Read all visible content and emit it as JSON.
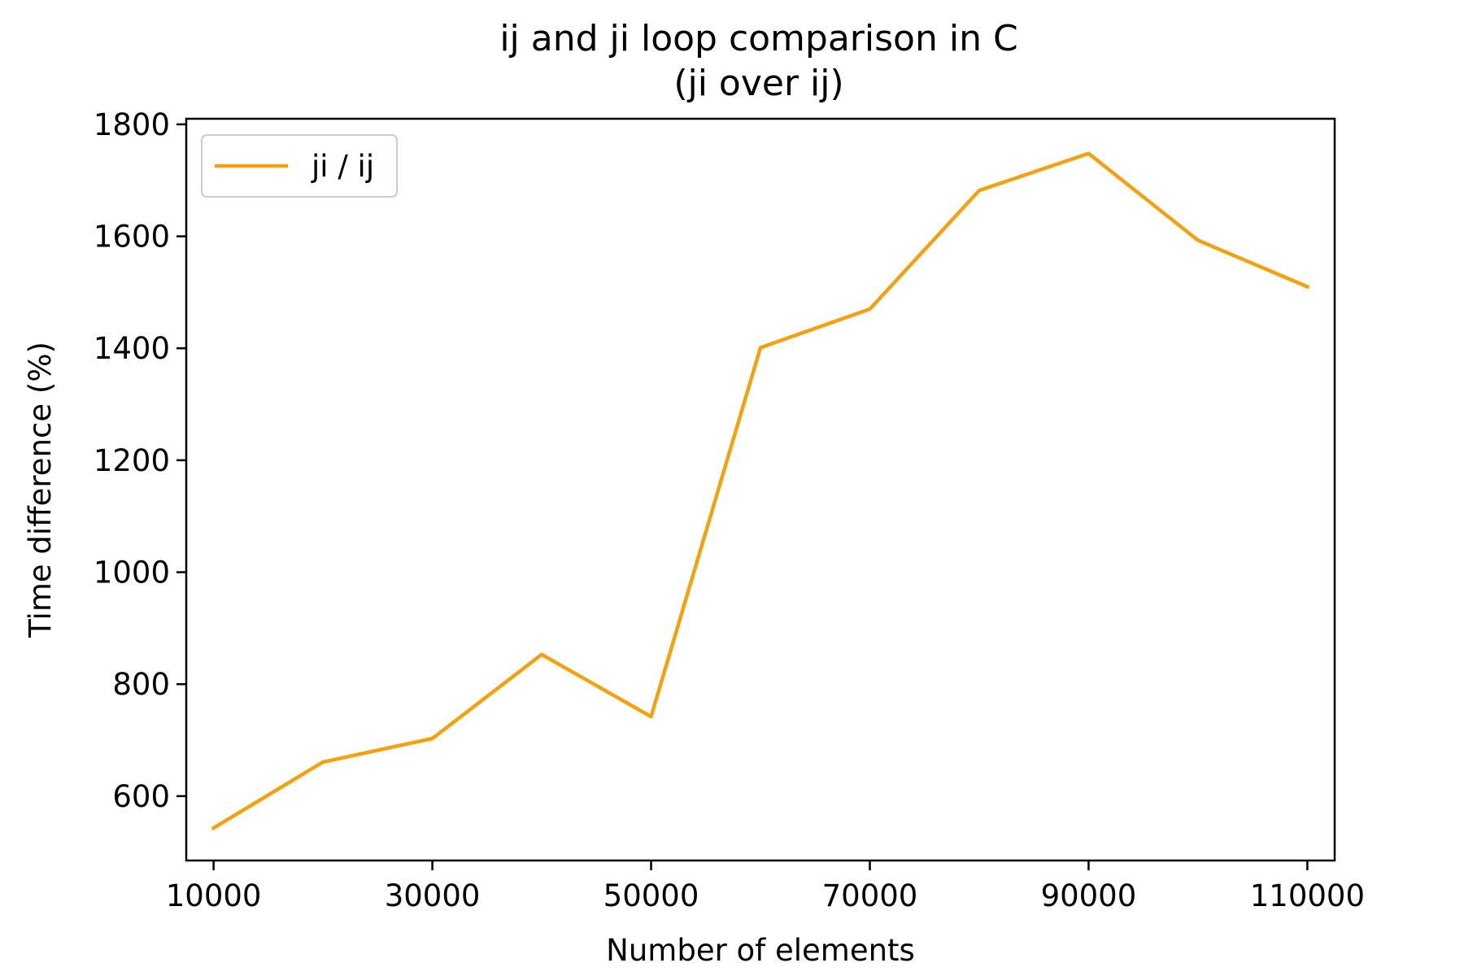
{
  "chart_data": {
    "type": "line",
    "title": "ij and ji loop comparison in C",
    "subtitle": "(ji over ij)",
    "xlabel": "Number of elements",
    "ylabel": "Time difference (%)",
    "xlim": [
      7500,
      112500
    ],
    "ylim": [
      485,
      1810
    ],
    "x": [
      10000,
      20000,
      30000,
      40000,
      50000,
      60000,
      70000,
      80000,
      90000,
      100000,
      110000
    ],
    "x_ticks": [
      10000,
      30000,
      50000,
      70000,
      90000,
      110000
    ],
    "x_tick_labels": [
      "10000",
      "30000",
      "50000",
      "70000",
      "90000",
      "110000"
    ],
    "y_ticks": [
      600,
      800,
      1000,
      1200,
      1400,
      1600,
      1800
    ],
    "y_tick_labels": [
      "600",
      "800",
      "1000",
      "1200",
      "1400",
      "1600",
      "1800"
    ],
    "legend_position": "top-left",
    "grid": false,
    "series": [
      {
        "name": "ji / ij",
        "color": "#f5a10f",
        "values": [
          543,
          661,
          703,
          853,
          742,
          1401,
          1470,
          1682,
          1748,
          1593,
          1510
        ]
      }
    ]
  }
}
